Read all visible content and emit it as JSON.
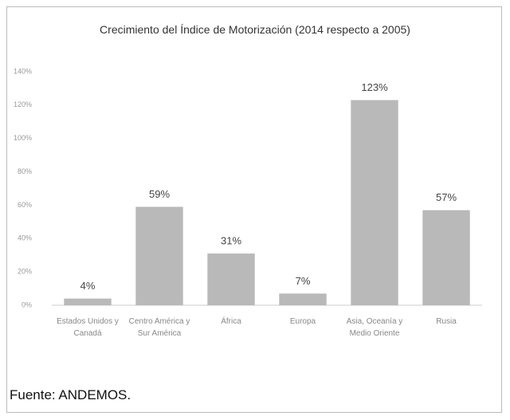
{
  "chart_data": {
    "type": "bar",
    "title": "Crecimiento del Índice de Motorización (2014 respecto a 2005)",
    "categories": [
      "Estados Unidos y Canadá",
      "Centro América y Sur América",
      "África",
      "Europa",
      "Asia, Oceanía y Medio Oriente",
      "Rusia"
    ],
    "values": [
      4,
      59,
      31,
      7,
      123,
      57
    ],
    "value_labels": [
      "4%",
      "59%",
      "31%",
      "7%",
      "123%",
      "57%"
    ],
    "color": "#b9b9b9",
    "ylim": [
      0,
      140
    ],
    "yticks": [
      {
        "value": 0,
        "label": "0%"
      },
      {
        "value": 20,
        "label": "20%"
      },
      {
        "value": 40,
        "label": "40%"
      },
      {
        "value": 60,
        "label": "60%"
      },
      {
        "value": 80,
        "label": "80%"
      },
      {
        "value": 100,
        "label": "100%"
      },
      {
        "value": 120,
        "label": "120%"
      },
      {
        "value": 140,
        "label": "140%"
      }
    ],
    "grid": false,
    "note": "Fuente: ANDEMOS."
  }
}
